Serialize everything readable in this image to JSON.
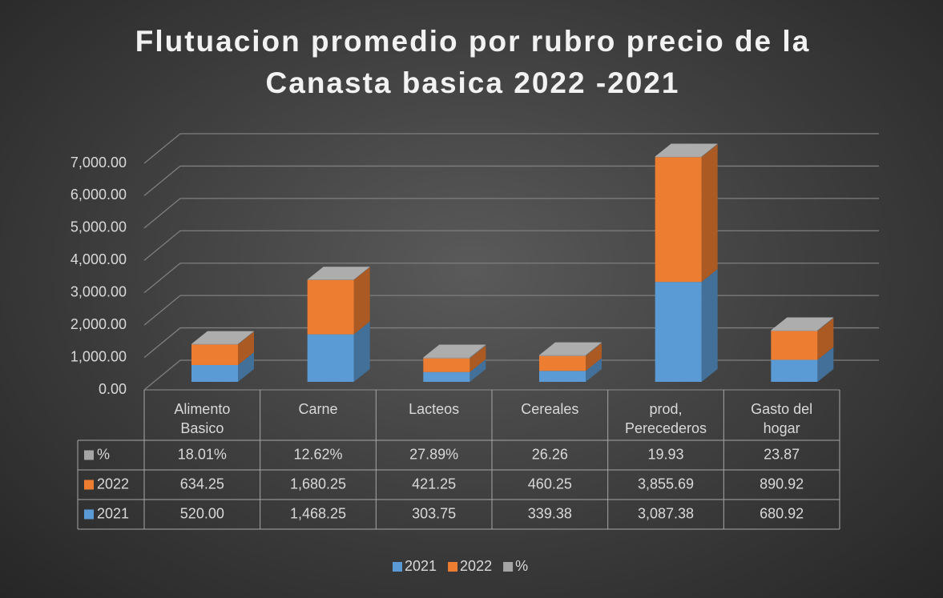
{
  "chart_data": {
    "type": "bar",
    "stacked": true,
    "title": "Flutuacion promedio por rubro precio de la Canasta basica 2022 -2021",
    "categories": [
      "Alimento Basico",
      "Carne",
      "Lacteos",
      "Cereales",
      "prod, Perecederos",
      "Gasto del hogar"
    ],
    "series": [
      {
        "name": "2021",
        "color": "#5b9bd5",
        "values": [
          520.0,
          1468.25,
          303.75,
          339.38,
          3087.38,
          680.92
        ],
        "value_labels": [
          "520.00",
          "1,468.25",
          "303.75",
          "339.38",
          "3,087.38",
          "680.92"
        ]
      },
      {
        "name": "2022",
        "color": "#ed7d31",
        "values": [
          634.25,
          1680.25,
          421.25,
          460.25,
          3855.69,
          890.92
        ],
        "value_labels": [
          "634.25",
          "1,680.25",
          "421.25",
          "460.25",
          "3,855.69",
          "890.92"
        ]
      },
      {
        "name": "%",
        "color": "#a5a5a5",
        "values": [
          18.01,
          12.62,
          27.89,
          26.26,
          19.93,
          23.87
        ],
        "value_labels": [
          "18.01%",
          "12.62%",
          "27.89%",
          "26.26",
          "19.93",
          "23.87"
        ]
      }
    ],
    "ylim": [
      0,
      7000
    ],
    "yticks": [
      {
        "value": 0,
        "label": "0.00"
      },
      {
        "value": 1000,
        "label": "1,000.00"
      },
      {
        "value": 2000,
        "label": "2,000.00"
      },
      {
        "value": 3000,
        "label": "3,000.00"
      },
      {
        "value": 4000,
        "label": "4,000.00"
      },
      {
        "value": 5000,
        "label": "5,000.00"
      },
      {
        "value": 6000,
        "label": "6,000.00"
      },
      {
        "value": 7000,
        "label": "7,000.00"
      }
    ],
    "grid": true,
    "data_table": true,
    "legend": "bottom"
  }
}
